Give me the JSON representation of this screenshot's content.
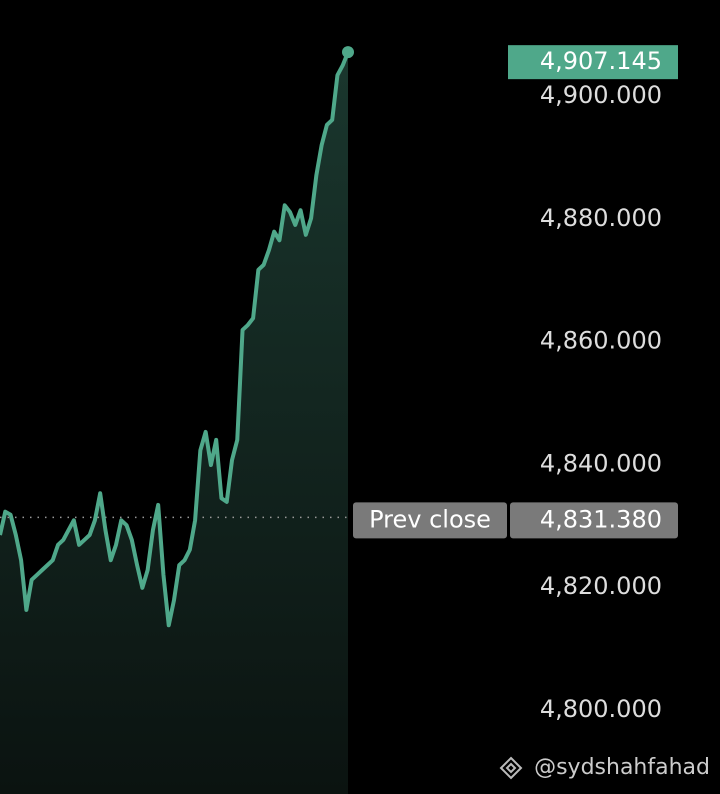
{
  "chart_data": {
    "type": "line",
    "color": "#4fa88a",
    "values": [
      4828.5,
      4832.3,
      4831.8,
      4828.5,
      4824.4,
      4816.3,
      4821.2,
      4822.0,
      4822.8,
      4823.6,
      4824.4,
      4826.9,
      4827.7,
      4829.3,
      4830.9,
      4826.9,
      4827.7,
      4828.5,
      4830.9,
      4835.3,
      4829.3,
      4824.4,
      4826.9,
      4830.9,
      4830.1,
      4827.7,
      4823.6,
      4819.9,
      4822.8,
      4829.3,
      4833.4,
      4822.0,
      4813.8,
      4817.9,
      4823.6,
      4824.4,
      4826.1,
      4830.9,
      4842.3,
      4845.3,
      4839.9,
      4844.0,
      4834.5,
      4833.9,
      4840.7,
      4844.0,
      4861.9,
      4862.7,
      4863.8,
      4871.7,
      4872.5,
      4874.9,
      4877.9,
      4876.5,
      4882.2,
      4881.1,
      4879.0,
      4881.4,
      4877.4,
      4880.1,
      4887.1,
      4892.0,
      4895.3,
      4896.1,
      4903.4,
      4905.0,
      4907.145
    ],
    "ylim": [
      4786.32,
      4915.64
    ],
    "yticks": [
      {
        "value": 4800,
        "label": "4,800.000"
      },
      {
        "value": 4820,
        "label": "4,820.000"
      },
      {
        "value": 4840,
        "label": "4,840.000"
      },
      {
        "value": 4860,
        "label": "4,860.000"
      },
      {
        "value": 4880,
        "label": "4,880.000"
      },
      {
        "value": 4900,
        "label": "4,900.000"
      }
    ],
    "current": {
      "value": 4907.145,
      "label": "4,907.145"
    },
    "prev_close": {
      "label": "Prev close",
      "value": 4831.38,
      "value_label": "4,831.380"
    },
    "watermark": "@sydshahfahad"
  }
}
